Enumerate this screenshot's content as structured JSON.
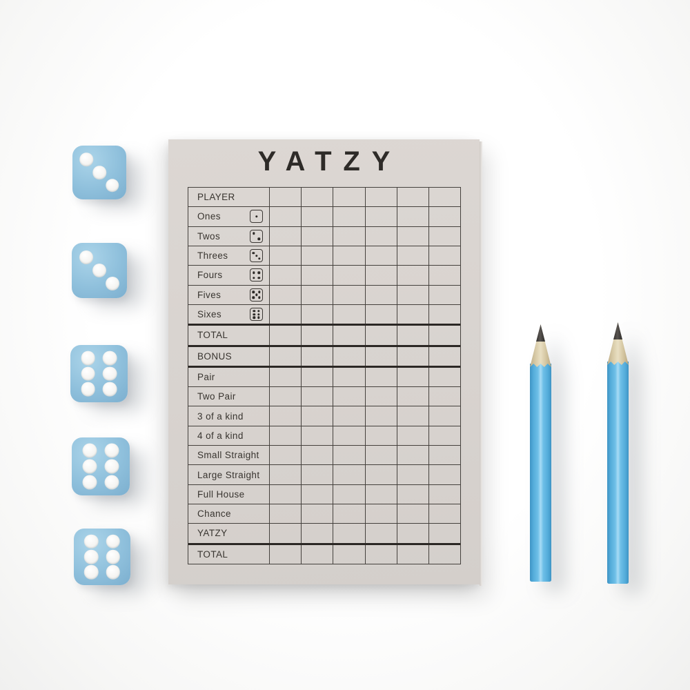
{
  "pad": {
    "title": "YATZY",
    "score_columns": 6,
    "rows": [
      {
        "label": "PLAYER",
        "die": 0,
        "thick_below": false
      },
      {
        "label": "Ones",
        "die": 1,
        "thick_below": false
      },
      {
        "label": "Twos",
        "die": 2,
        "thick_below": false
      },
      {
        "label": "Threes",
        "die": 3,
        "thick_below": false
      },
      {
        "label": "Fours",
        "die": 4,
        "thick_below": false
      },
      {
        "label": "Fives",
        "die": 5,
        "thick_below": false
      },
      {
        "label": "Sixes",
        "die": 6,
        "thick_below": true
      },
      {
        "label": "TOTAL",
        "die": 0,
        "thick_below": true
      },
      {
        "label": "BONUS",
        "die": 0,
        "thick_below": true
      },
      {
        "label": "Pair",
        "die": 0,
        "thick_below": false
      },
      {
        "label": "Two Pair",
        "die": 0,
        "thick_below": false
      },
      {
        "label": "3 of a kind",
        "die": 0,
        "thick_below": false
      },
      {
        "label": "4 of a kind",
        "die": 0,
        "thick_below": false
      },
      {
        "label": "Small Straight",
        "die": 0,
        "thick_below": false
      },
      {
        "label": "Large Straight",
        "die": 0,
        "thick_below": false
      },
      {
        "label": "Full House",
        "die": 0,
        "thick_below": false
      },
      {
        "label": "Chance",
        "die": 0,
        "thick_below": false
      },
      {
        "label": "YATZY",
        "die": 0,
        "thick_below": true
      },
      {
        "label": "TOTAL",
        "die": 0,
        "thick_below": false
      }
    ]
  },
  "dice": {
    "count": 5,
    "faces": [
      3,
      3,
      6,
      6,
      6
    ],
    "body_color": "#8fc0dc",
    "pip_color": "#f4f3f0"
  },
  "pencils": {
    "count": 2,
    "body_color": "#53abd9",
    "wood_color": "#d9cca9",
    "graphite_color": "#343230"
  },
  "colors": {
    "background": "#f7f7f6",
    "paper": "#d8d3cf",
    "table_line": "#44403c",
    "title_ink": "#2e2b28"
  }
}
